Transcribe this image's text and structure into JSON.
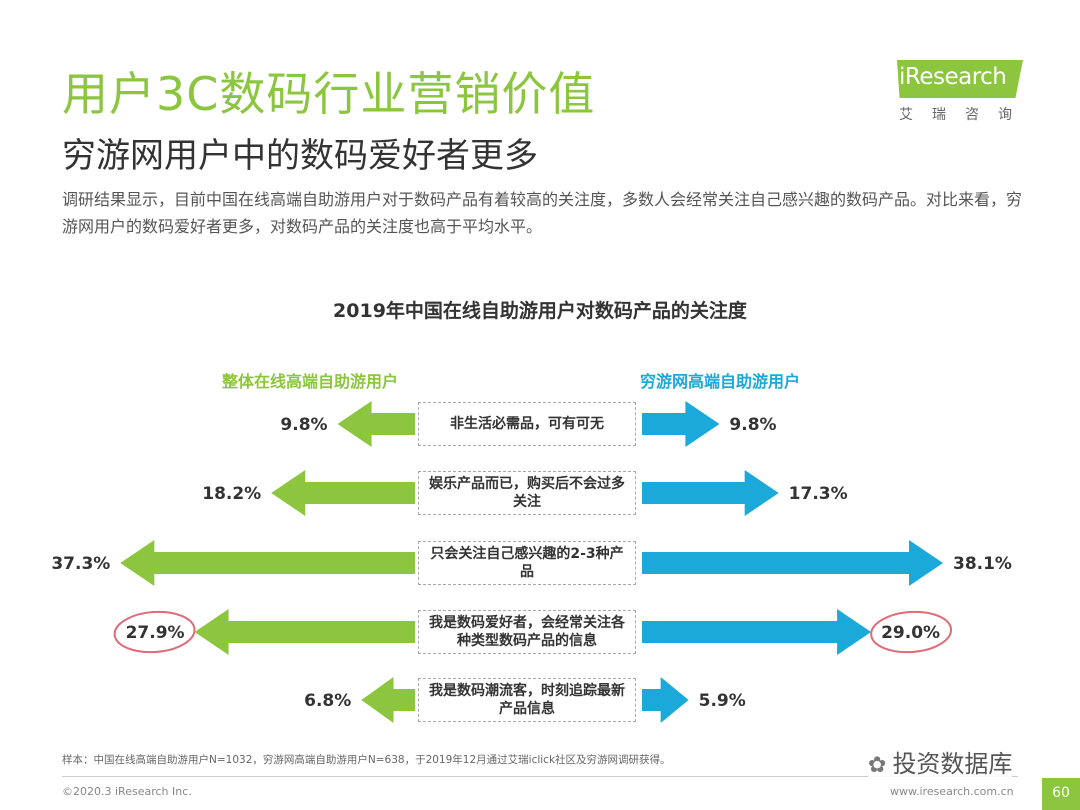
{
  "header": {
    "title": "用户3C数码行业营销价值",
    "subtitle": "穷游网用户中的数码爱好者更多",
    "description": "调研结果显示，目前中国在线高端自助游用户对于数码产品有着较高的关注度，多数人会经常关注自己感兴趣的数码产品。对比来看，穷游网用户的数码爱好者更多，对数码产品的关注度也高于平均水平。"
  },
  "logo": {
    "brand": "iResearch",
    "cn": "艾瑞咨询"
  },
  "colors": {
    "accent": "#8cc63f",
    "left": "#8cc63f",
    "right": "#1aa9d9",
    "highlight": "#e06a78"
  },
  "chart_data": {
    "type": "bar",
    "title": "2019年中国在线自助游用户对数码产品的关注度",
    "categories": [
      "非生活必需品，可有可无",
      "娱乐产品而已，购买后不会过多关注",
      "只会关注自己感兴趣的2-3种产品",
      "我是数码爱好者，会经常关注各种类型数码产品的信息",
      "我是数码潮流客，时刻追踪最新产品信息"
    ],
    "series": [
      {
        "name": "整体在线高端自助游用户",
        "values": [
          9.8,
          18.2,
          37.3,
          27.9,
          6.8
        ],
        "labels": [
          "9.8%",
          "18.2%",
          "37.3%",
          "27.9%",
          "6.8%"
        ]
      },
      {
        "name": "穷游网高端自助游用户",
        "values": [
          9.8,
          17.3,
          38.1,
          29.0,
          5.9
        ],
        "labels": [
          "9.8%",
          "17.3%",
          "38.1%",
          "29.0%",
          "5.9%"
        ]
      }
    ],
    "highlighted_category_index": 3,
    "unit": "%",
    "layout": "butterfly"
  },
  "footnote": "样本：中国在线高端自助游用户N=1032，穷游网高端自助游用户N=638，于2019年12月通过艾瑞iclick社区及穷游网调研获得。",
  "footer": {
    "copyright": "©2020.3 iResearch Inc.",
    "website": "www.iresearch.com.cn",
    "page": "60"
  },
  "watermark": "投资数据库"
}
